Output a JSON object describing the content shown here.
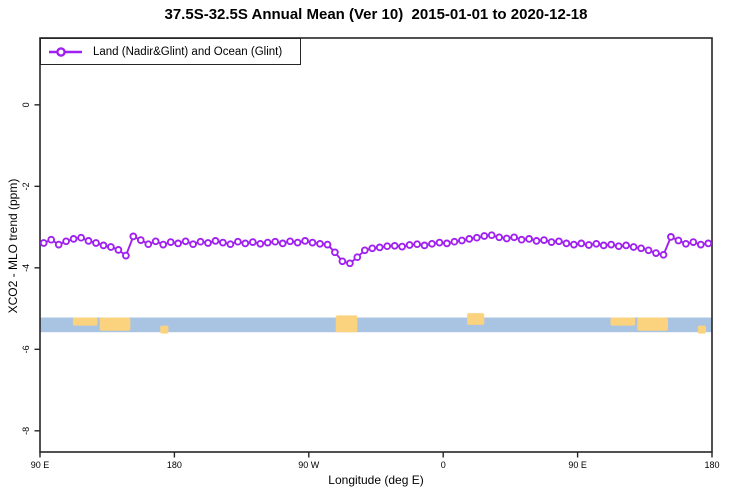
{
  "title": "37.5S-32.5S Annual Mean (Ver 10)  2015-01-01 to 2020-12-18",
  "legend": {
    "label": "Land (Nadir&Glint) and Ocean (Glint)"
  },
  "colors": {
    "series": "#A020F0",
    "axis": "#262626",
    "ocean": "#A9C3E3",
    "land": "#FBD37E",
    "background": "#FFFFFF"
  },
  "chart_data": {
    "type": "line",
    "title": "37.5S-32.5S Annual Mean (Ver 10)  2015-01-01 to 2020-12-18",
    "xlabel": "Longitude (deg E)",
    "ylabel": "XCO2 - MLO trend (ppm)",
    "xlim": [
      90,
      540
    ],
    "ylim": [
      -8.52,
      1.64
    ],
    "grid": false,
    "legend_position": "top-left",
    "x_ticks": [
      {
        "pos": 90,
        "label": "90 E"
      },
      {
        "pos": 180,
        "label": "180"
      },
      {
        "pos": 270,
        "label": "90 W"
      },
      {
        "pos": 360,
        "label": "0"
      },
      {
        "pos": 450,
        "label": "90 E"
      },
      {
        "pos": 540,
        "label": "180"
      }
    ],
    "y_ticks": [
      {
        "pos": 0,
        "label": "0"
      },
      {
        "pos": -2,
        "label": "-2"
      },
      {
        "pos": -4,
        "label": "-4"
      },
      {
        "pos": -6,
        "label": "-6"
      },
      {
        "pos": -8,
        "label": "-8"
      }
    ],
    "series": [
      {
        "name": "Land (Nadir&Glint) and Ocean (Glint)",
        "color": "#A020F0",
        "marker": "open-circle",
        "x_start": 92.5,
        "x_step": 5,
        "values": [
          -3.39,
          -3.31,
          -3.43,
          -3.35,
          -3.29,
          -3.26,
          -3.34,
          -3.39,
          -3.45,
          -3.49,
          -3.56,
          -3.7,
          -3.23,
          -3.32,
          -3.42,
          -3.35,
          -3.43,
          -3.37,
          -3.4,
          -3.35,
          -3.42,
          -3.36,
          -3.39,
          -3.34,
          -3.38,
          -3.42,
          -3.36,
          -3.4,
          -3.37,
          -3.41,
          -3.38,
          -3.36,
          -3.4,
          -3.35,
          -3.38,
          -3.34,
          -3.38,
          -3.41,
          -3.43,
          -3.62,
          -3.84,
          -3.89,
          -3.74,
          -3.57,
          -3.52,
          -3.5,
          -3.47,
          -3.46,
          -3.48,
          -3.44,
          -3.42,
          -3.45,
          -3.41,
          -3.38,
          -3.4,
          -3.36,
          -3.33,
          -3.29,
          -3.26,
          -3.22,
          -3.2,
          -3.25,
          -3.28,
          -3.25,
          -3.31,
          -3.29,
          -3.34,
          -3.32,
          -3.37,
          -3.35,
          -3.4,
          -3.43,
          -3.4,
          -3.44,
          -3.41,
          -3.45,
          -3.43,
          -3.47,
          -3.45,
          -3.49,
          -3.52,
          -3.57,
          -3.64,
          -3.68,
          -3.24,
          -3.33,
          -3.41,
          -3.37,
          -3.43,
          -3.4
        ]
      }
    ],
    "map_strip": {
      "description": "latitude band map of 37.5S-32.5S: ocean blue with yellow land masses",
      "band_y_top": -5.22,
      "band_y_bottom": -5.58,
      "ocean_color": "#A9C3E3",
      "land_color": "#FBD37E",
      "land_patches": [
        {
          "name": "australia-west",
          "lon": [
            112.0,
            128.5
          ],
          "depth": [
            0.0,
            0.55
          ]
        },
        {
          "name": "australia-southeast",
          "lon": [
            130.0,
            150.5
          ],
          "depth": [
            0.0,
            0.9
          ]
        },
        {
          "name": "new-zealand",
          "lon": [
            170.5,
            176.0
          ],
          "depth": [
            0.55,
            1.1
          ]
        },
        {
          "name": "south-america",
          "lon": [
            288.0,
            302.5
          ],
          "depth": [
            -0.15,
            1.0
          ]
        },
        {
          "name": "south-africa",
          "lon": [
            376.0,
            387.5
          ],
          "depth": [
            -0.3,
            0.5
          ]
        },
        {
          "name": "australia-west-repeat",
          "lon": [
            472.0,
            488.5
          ],
          "depth": [
            0.0,
            0.55
          ]
        },
        {
          "name": "australia-southeast-repeat",
          "lon": [
            490.0,
            510.5
          ],
          "depth": [
            0.0,
            0.9
          ]
        },
        {
          "name": "new-zealand-repeat",
          "lon": [
            530.5,
            536.0
          ],
          "depth": [
            0.55,
            1.1
          ]
        }
      ]
    }
  }
}
